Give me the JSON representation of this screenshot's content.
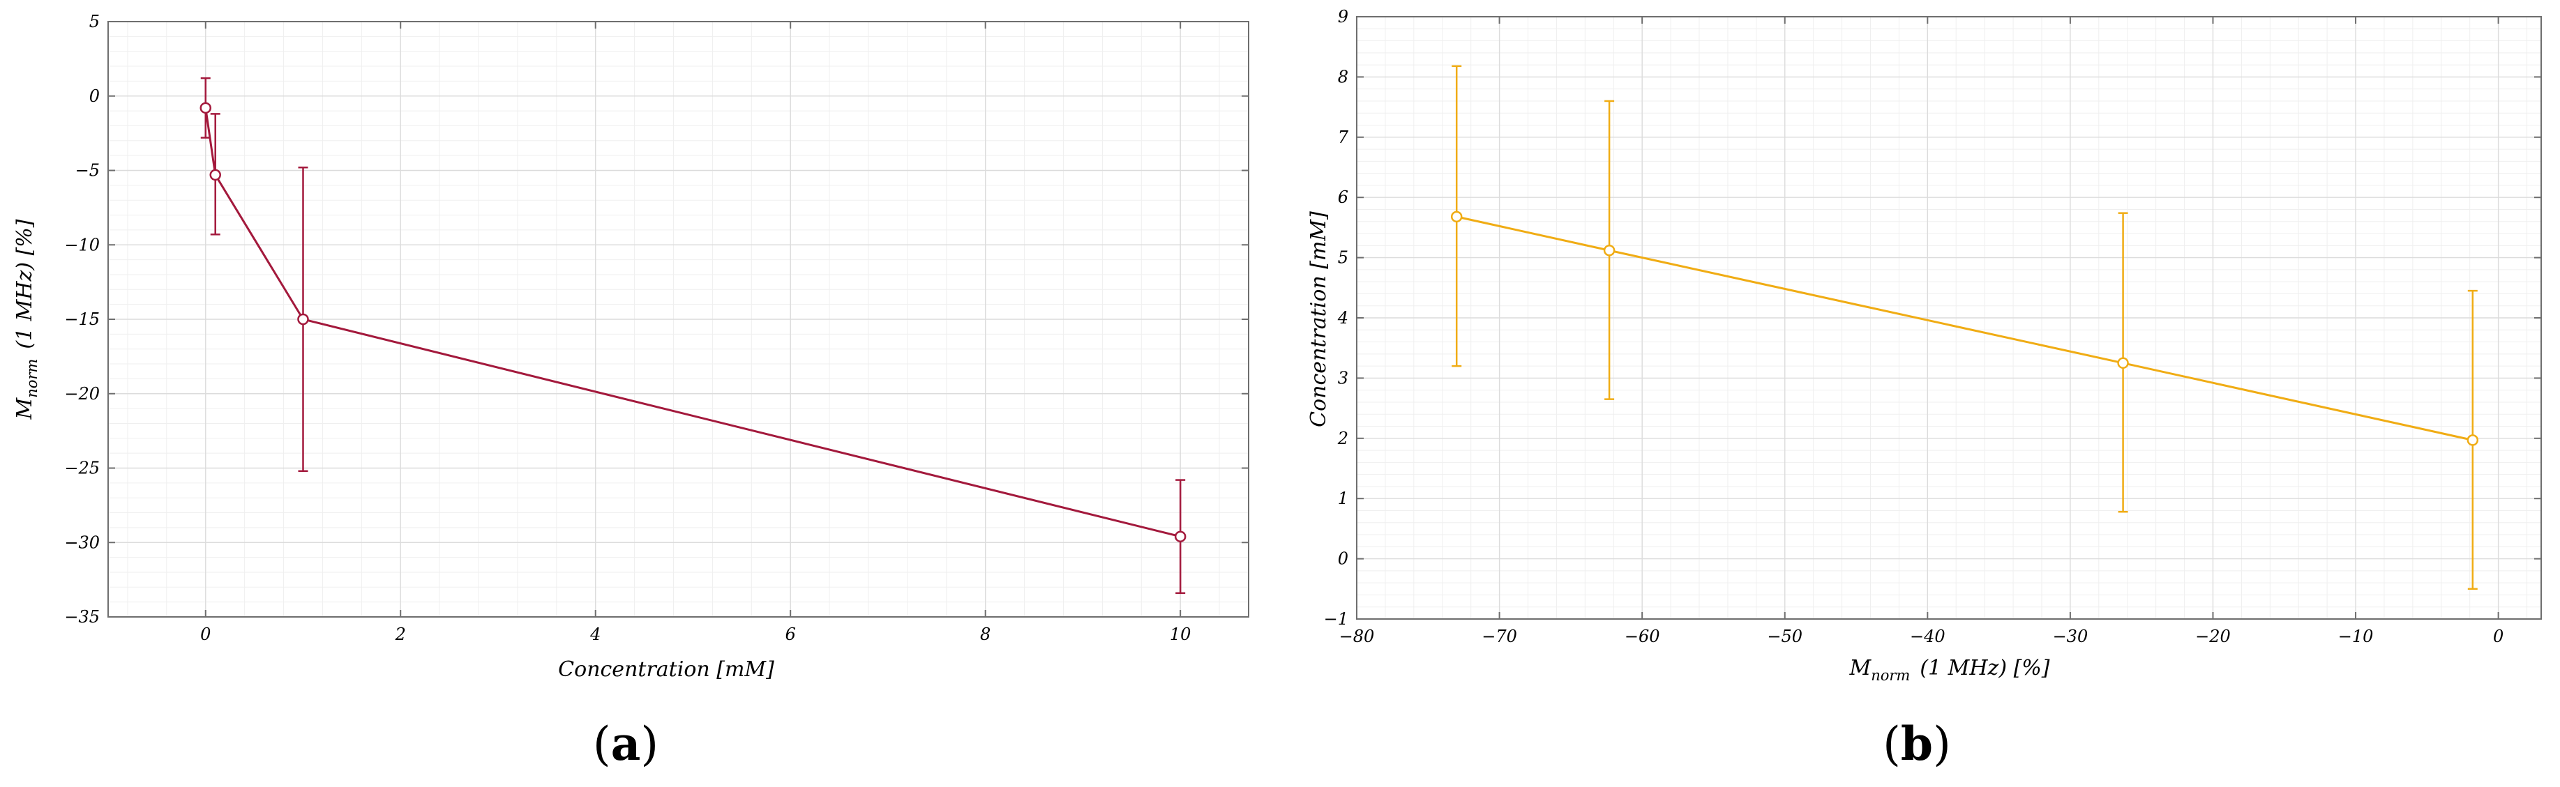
{
  "chart_data": [
    {
      "type": "line",
      "panel": "(a)",
      "panel_label_parts": [
        "(",
        "a",
        ")"
      ],
      "xlabel": "Concentration [mM]",
      "ylabel_parts": [
        "M",
        "norm",
        "(1 MHz) [%]"
      ],
      "xlim": [
        -1,
        10.7
      ],
      "ylim": [
        -35,
        5
      ],
      "xticks": [
        0,
        2,
        4,
        6,
        8,
        10
      ],
      "yticks": [
        5,
        0,
        -5,
        -10,
        -15,
        -20,
        -25,
        -30,
        -35
      ],
      "grid": true,
      "minor_grid": true,
      "color": "#a3193c",
      "series": [
        {
          "x": [
            0,
            0.1,
            1,
            10
          ],
          "y": [
            -0.8,
            -5.3,
            -15.0,
            -29.6
          ],
          "err_low": [
            -2.8,
            -9.3,
            -25.2,
            -33.4
          ],
          "err_high": [
            1.2,
            -1.2,
            -4.8,
            -25.8
          ]
        }
      ]
    },
    {
      "type": "line",
      "panel": "(b)",
      "panel_label_parts": [
        "(",
        "b",
        ")"
      ],
      "xlabel_parts": [
        "M",
        "norm",
        "(1 MHz) [%]"
      ],
      "ylabel": "Concentration [mM]",
      "xlim": [
        -80,
        3
      ],
      "ylim": [
        -1,
        9
      ],
      "xticks": [
        -80,
        -70,
        -60,
        -50,
        -40,
        -30,
        -20,
        -10,
        0
      ],
      "yticks": [
        9,
        8,
        7,
        6,
        5,
        4,
        3,
        2,
        1,
        0,
        -1
      ],
      "grid": true,
      "minor_grid": true,
      "color": "#f0ac14",
      "series": [
        {
          "x": [
            -73,
            -62.3,
            -26.3,
            -1.8
          ],
          "y": [
            5.68,
            5.12,
            3.25,
            1.97
          ],
          "err_low": [
            3.2,
            2.65,
            0.78,
            -0.5
          ],
          "err_high": [
            8.18,
            7.6,
            5.74,
            4.45
          ]
        }
      ]
    }
  ]
}
